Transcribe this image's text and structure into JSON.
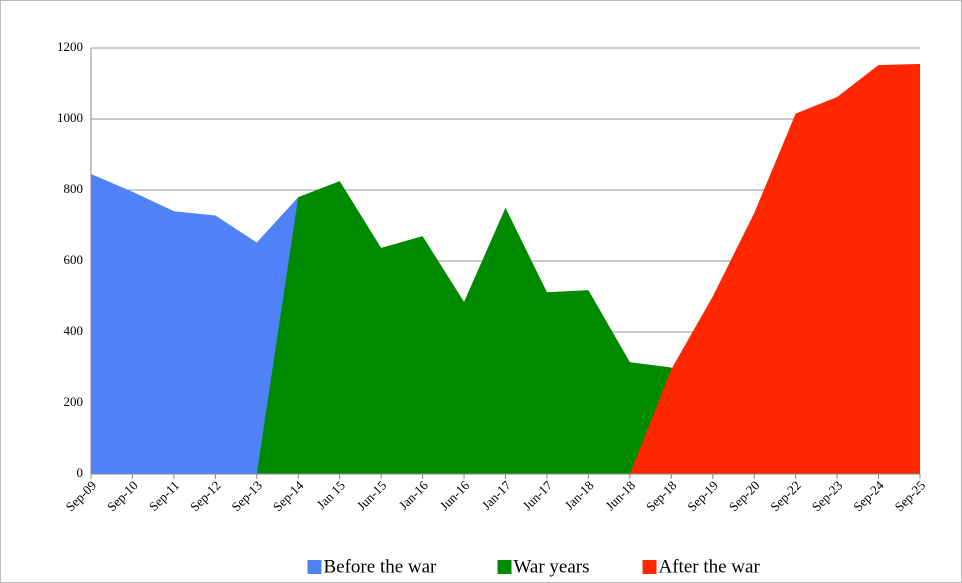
{
  "chart_data": {
    "type": "area",
    "categories": [
      "Sep-09",
      "Sep-10",
      "Sep-11",
      "Sep-12",
      "Sep-13",
      "Sep-14",
      "Jan 15",
      "Jun-15",
      "Jan-16",
      "Jun-16",
      "Jan-17",
      "Jun-17",
      "Jan-18",
      "Jun-18",
      "Sep-18",
      "Sep-19",
      "Sep-20",
      "Sep-22",
      "Sep-23",
      "Sep-24",
      "Sep-25"
    ],
    "series": [
      {
        "name": "Before the war",
        "color": "#4f81f7",
        "values": [
          845,
          795,
          740,
          728,
          652,
          780,
          null,
          null,
          null,
          null,
          null,
          null,
          null,
          null,
          null,
          null,
          null,
          null,
          null,
          null,
          null
        ]
      },
      {
        "name": "War years",
        "color": "#008a00",
        "values": [
          null,
          null,
          null,
          null,
          0,
          780,
          825,
          637,
          670,
          485,
          750,
          512,
          518,
          315,
          300,
          0,
          null,
          null,
          null,
          null,
          null
        ]
      },
      {
        "name": "After the war",
        "color": "#ff2600",
        "values": [
          null,
          null,
          null,
          null,
          null,
          null,
          null,
          null,
          null,
          null,
          null,
          null,
          null,
          0,
          295,
          500,
          735,
          1015,
          1062,
          1152,
          1155
        ]
      }
    ],
    "ylim": [
      0,
      1200
    ],
    "yticks": [
      0,
      200,
      400,
      600,
      800,
      1000,
      1200
    ],
    "grid": true,
    "legend": "bottom"
  }
}
